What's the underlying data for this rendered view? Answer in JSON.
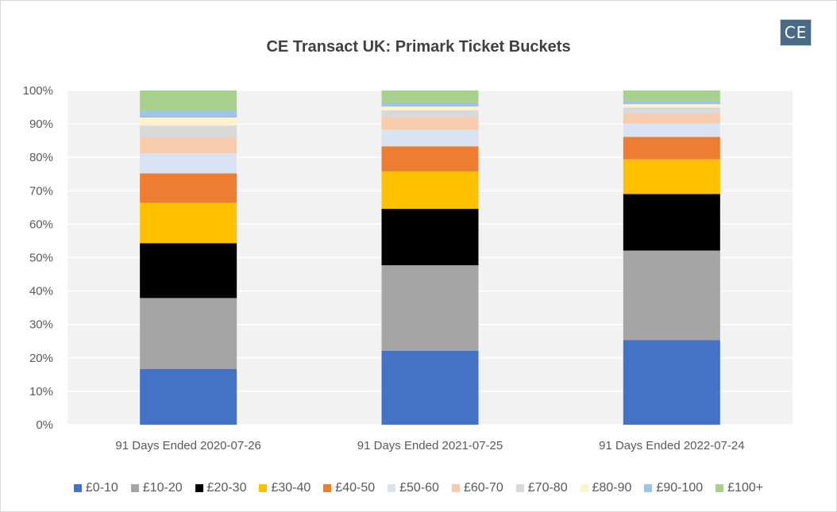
{
  "chart_data": {
    "type": "bar",
    "stacked": true,
    "title": "CE Transact UK: Primark Ticket Buckets",
    "logo_text": "CE",
    "categories": [
      "91 Days Ended 2020-07-26",
      "91 Days Ended 2021-07-25",
      "91 Days Ended 2022-07-24"
    ],
    "y_ticks": [
      "0%",
      "10%",
      "20%",
      "30%",
      "40%",
      "50%",
      "60%",
      "70%",
      "80%",
      "90%",
      "100%"
    ],
    "ylim": [
      0,
      100
    ],
    "grid": true,
    "legend_position": "bottom",
    "plot_background": "#f2f2f2",
    "series": [
      {
        "name": "£0-10",
        "color": "#4472c4",
        "values": [
          16.7,
          22.1,
          25.3
        ]
      },
      {
        "name": "£10-20",
        "color": "#a5a5a5",
        "values": [
          21.2,
          25.6,
          26.8
        ]
      },
      {
        "name": "£20-30",
        "color": "#000000",
        "values": [
          16.4,
          16.9,
          16.9
        ]
      },
      {
        "name": "£30-40",
        "color": "#ffc000",
        "values": [
          12.1,
          11.2,
          10.4
        ]
      },
      {
        "name": "£40-50",
        "color": "#ed7d31",
        "values": [
          8.8,
          7.5,
          6.7
        ]
      },
      {
        "name": "£50-60",
        "color": "#dae3f3",
        "values": [
          6.0,
          5.0,
          4.0
        ]
      },
      {
        "name": "£60-70",
        "color": "#f8cbad",
        "values": [
          4.8,
          3.6,
          3.1
        ]
      },
      {
        "name": "£70-80",
        "color": "#d9d9d9",
        "values": [
          3.5,
          2.2,
          1.7
        ]
      },
      {
        "name": "£80-90",
        "color": "#fff2cc",
        "values": [
          2.4,
          1.1,
          1.0
        ]
      },
      {
        "name": "£90-100",
        "color": "#9dc3e6",
        "values": [
          2.1,
          1.0,
          0.8
        ]
      },
      {
        "name": "£100+",
        "color": "#a9d18e",
        "values": [
          6.0,
          3.8,
          3.3
        ]
      }
    ]
  }
}
